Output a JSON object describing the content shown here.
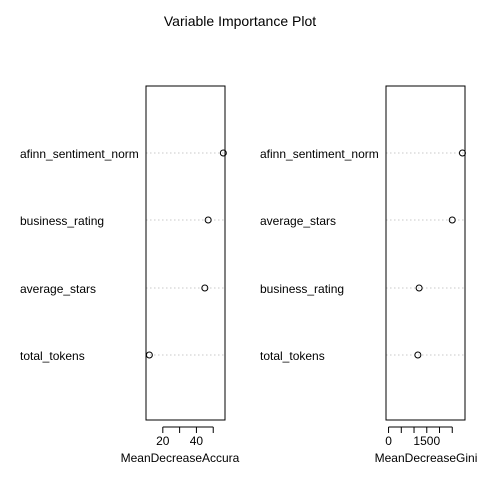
{
  "title": "Variable Importance Plot",
  "chart_data": [
    {
      "type": "dotchart",
      "xlabel": "MeanDecreaseAccura",
      "ylabel": "",
      "xlim": [
        10,
        57
      ],
      "xticks": [
        20,
        30,
        40,
        50
      ],
      "xtick_labels": [
        "20",
        "",
        "40",
        ""
      ],
      "categories": [
        "afinn_sentiment_norm",
        "business_rating",
        "average_stars",
        "total_tokens"
      ],
      "values": [
        56,
        47,
        45,
        12
      ],
      "grid": "dotted horizontal guide per variable",
      "marker": "open circle"
    },
    {
      "type": "dotchart",
      "xlabel": "MeanDecreaseGini",
      "ylabel": "",
      "xlim": [
        -100,
        3000
      ],
      "xticks": [
        0,
        500,
        1000,
        1500,
        2000,
        2500
      ],
      "xtick_labels": [
        "0",
        "",
        "",
        "1500",
        "",
        ""
      ],
      "categories": [
        "afinn_sentiment_norm",
        "average_stars",
        "business_rating",
        "total_tokens"
      ],
      "values": [
        2900,
        2500,
        1200,
        1150
      ],
      "grid": "dotted horizontal guide per variable",
      "marker": "open circle"
    }
  ]
}
